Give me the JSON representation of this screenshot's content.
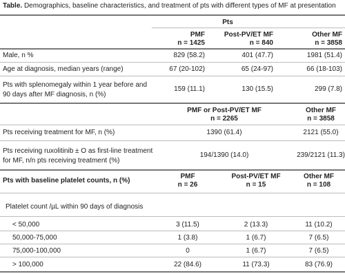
{
  "title": {
    "label": "Table.",
    "text": "Demographics, baseline characteristics, and treatment of pts with different types of MF at presentation"
  },
  "section1": {
    "group_header": "Pts",
    "columns": [
      {
        "name": "PMF",
        "n": "n = 1425"
      },
      {
        "name": "Post-PV/ET MF",
        "n": "n = 840"
      },
      {
        "name": "Other MF",
        "n": "n = 3858"
      }
    ],
    "rows": [
      {
        "label": "Male, n %",
        "values": [
          "829 (58.2)",
          "401 (47.7)",
          "1981 (51.4)"
        ]
      },
      {
        "label": "Age at diagnosis, median years (range)",
        "values": [
          "67 (20-102)",
          "65 (24-97)",
          "66 (18-103)"
        ]
      },
      {
        "label": "Pts with splenomegaly within 1 year before and 90 days after MF diagnosis, n (%)",
        "values": [
          "159 (11.1)",
          "130 (15.5)",
          "299 (7.8)"
        ]
      }
    ]
  },
  "section2": {
    "columns": [
      {
        "name": "PMF or Post-PV/ET MF",
        "n": "n = 2265"
      },
      {
        "name": "Other MF",
        "n": "n = 3858"
      }
    ],
    "rows": [
      {
        "label": "Pts receiving treatment for MF, n (%)",
        "values": [
          "1390 (61.4)",
          "2121 (55.0)"
        ]
      },
      {
        "label": "Pts receiving ruxolitinib ± O as first-line treatment for MF, n/n pts receiving treatment (%)",
        "values": [
          "194/1390 (14.0)",
          "239/2121 (11.3)"
        ]
      }
    ]
  },
  "section3": {
    "header": "Pts with baseline platelet counts, n (%)",
    "columns": [
      {
        "name": "PMF",
        "n": "n = 26"
      },
      {
        "name": "Post-PV/ET MF",
        "n": "n = 15"
      },
      {
        "name": "Other MF",
        "n": "n = 108"
      }
    ],
    "subheader": "Platelet count /µL within 90 days of diagnosis",
    "rows": [
      {
        "label": "< 50,000",
        "values": [
          "3 (11.5)",
          "2 (13.3)",
          "11 (10.2)"
        ]
      },
      {
        "label": "50,000-75,000",
        "values": [
          "1 (3.8)",
          "1 (6.7)",
          "7 (6.5)"
        ]
      },
      {
        "label": "75,000-100,000",
        "values": [
          "0",
          "1 (6.7)",
          "7 (6.5)"
        ]
      },
      {
        "label": "> 100,000",
        "values": [
          "22 (84.6)",
          "11 (73.3)",
          "83 (76.9)"
        ]
      }
    ]
  }
}
